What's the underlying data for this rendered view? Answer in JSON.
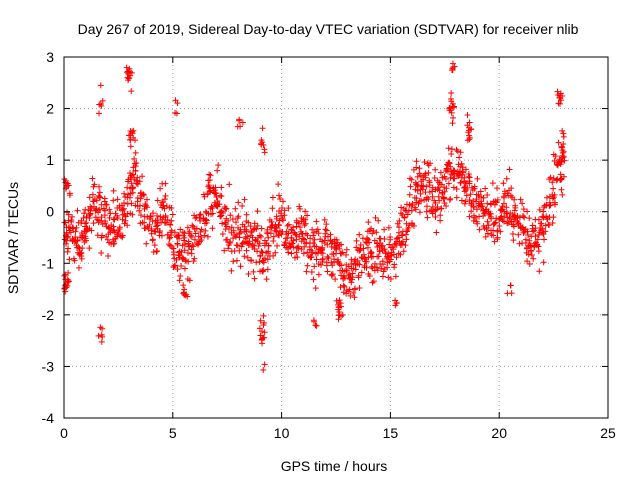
{
  "chart_data": {
    "type": "scatter",
    "title": "Day 267 of 2019, Sidereal Day-to-day VTEC variation (SDTVAR) for receiver nlib",
    "xlabel": "GPS time / hours",
    "ylabel": "SDTVAR / TECUs",
    "xlim": [
      0,
      25
    ],
    "ylim": [
      -4,
      3
    ],
    "xticks": [
      0,
      5,
      10,
      15,
      20,
      25
    ],
    "yticks": [
      -4,
      -3,
      -2,
      -1,
      0,
      1,
      2,
      3
    ],
    "xtick_labels": [
      "0",
      "5",
      "10",
      "15",
      "20",
      "25"
    ],
    "ytick_labels": [
      "-4",
      "-3",
      "-2",
      "-1",
      "0",
      "1",
      "2",
      "3"
    ],
    "grid": true,
    "marker": "+",
    "marker_color": "#ff0000",
    "trend": [
      {
        "x": 0.0,
        "y": -0.2
      },
      {
        "x": 0.3,
        "y": -0.4
      },
      {
        "x": 0.7,
        "y": -0.6
      },
      {
        "x": 1.0,
        "y": -0.3
      },
      {
        "x": 1.4,
        "y": 0.2
      },
      {
        "x": 1.8,
        "y": -0.2
      },
      {
        "x": 2.2,
        "y": -0.5
      },
      {
        "x": 2.6,
        "y": 0.0
      },
      {
        "x": 3.0,
        "y": 0.4
      },
      {
        "x": 3.3,
        "y": 0.8
      },
      {
        "x": 3.7,
        "y": 0.0
      },
      {
        "x": 4.2,
        "y": -0.4
      },
      {
        "x": 4.6,
        "y": 0.1
      },
      {
        "x": 5.0,
        "y": -0.6
      },
      {
        "x": 5.4,
        "y": -0.9
      },
      {
        "x": 5.8,
        "y": -0.8
      },
      {
        "x": 6.3,
        "y": -0.2
      },
      {
        "x": 6.7,
        "y": 0.4
      },
      {
        "x": 7.1,
        "y": 0.2
      },
      {
        "x": 7.5,
        "y": -0.3
      },
      {
        "x": 8.0,
        "y": -0.4
      },
      {
        "x": 8.4,
        "y": -0.6
      },
      {
        "x": 8.8,
        "y": -0.7
      },
      {
        "x": 9.2,
        "y": -0.9
      },
      {
        "x": 9.6,
        "y": -0.4
      },
      {
        "x": 10.0,
        "y": 0.0
      },
      {
        "x": 10.4,
        "y": -0.6
      },
      {
        "x": 10.8,
        "y": -0.4
      },
      {
        "x": 11.2,
        "y": -0.6
      },
      {
        "x": 11.6,
        "y": -0.8
      },
      {
        "x": 12.0,
        "y": -0.7
      },
      {
        "x": 12.4,
        "y": -0.9
      },
      {
        "x": 12.8,
        "y": -1.1
      },
      {
        "x": 13.2,
        "y": -1.3
      },
      {
        "x": 13.6,
        "y": -1.0
      },
      {
        "x": 14.0,
        "y": -0.8
      },
      {
        "x": 14.4,
        "y": -0.7
      },
      {
        "x": 14.8,
        "y": -0.9
      },
      {
        "x": 15.2,
        "y": -0.8
      },
      {
        "x": 15.6,
        "y": -0.4
      },
      {
        "x": 16.0,
        "y": 0.2
      },
      {
        "x": 16.4,
        "y": 0.5
      },
      {
        "x": 16.8,
        "y": 0.4
      },
      {
        "x": 17.2,
        "y": 0.2
      },
      {
        "x": 17.6,
        "y": 0.6
      },
      {
        "x": 18.0,
        "y": 0.8
      },
      {
        "x": 18.4,
        "y": 0.5
      },
      {
        "x": 18.8,
        "y": 0.3
      },
      {
        "x": 19.2,
        "y": 0.1
      },
      {
        "x": 19.6,
        "y": -0.2
      },
      {
        "x": 20.0,
        "y": 0.0
      },
      {
        "x": 20.4,
        "y": 0.2
      },
      {
        "x": 20.8,
        "y": -0.2
      },
      {
        "x": 21.2,
        "y": -0.4
      },
      {
        "x": 21.6,
        "y": -0.6
      },
      {
        "x": 22.0,
        "y": -0.3
      },
      {
        "x": 22.4,
        "y": 0.3
      },
      {
        "x": 22.8,
        "y": 0.9
      },
      {
        "x": 23.0,
        "y": 1.0
      }
    ],
    "clusters": [
      {
        "x": 0.1,
        "y": -1.4,
        "spread": 0.25,
        "count": 18
      },
      {
        "x": 0.1,
        "y": 0.5,
        "spread": 0.2,
        "count": 10
      },
      {
        "x": 1.7,
        "y": 2.2,
        "spread": 0.2,
        "count": 6
      },
      {
        "x": 1.7,
        "y": -2.3,
        "spread": 0.35,
        "count": 6
      },
      {
        "x": 3.0,
        "y": 2.6,
        "spread": 0.25,
        "count": 14
      },
      {
        "x": 3.1,
        "y": 1.5,
        "spread": 0.15,
        "count": 10
      },
      {
        "x": 5.1,
        "y": 2.0,
        "spread": 0.2,
        "count": 4
      },
      {
        "x": 5.6,
        "y": -1.6,
        "spread": 0.15,
        "count": 8
      },
      {
        "x": 8.1,
        "y": 1.7,
        "spread": 0.2,
        "count": 5
      },
      {
        "x": 9.1,
        "y": -2.4,
        "spread": 0.3,
        "count": 14
      },
      {
        "x": 9.1,
        "y": 1.2,
        "spread": 0.3,
        "count": 8
      },
      {
        "x": 9.1,
        "y": -3.0,
        "spread": 0.1,
        "count": 2
      },
      {
        "x": 11.5,
        "y": -2.1,
        "spread": 0.15,
        "count": 4
      },
      {
        "x": 12.7,
        "y": -1.9,
        "spread": 0.25,
        "count": 14
      },
      {
        "x": 15.2,
        "y": -1.8,
        "spread": 0.15,
        "count": 4
      },
      {
        "x": 17.8,
        "y": 2.0,
        "spread": 0.3,
        "count": 14
      },
      {
        "x": 17.9,
        "y": 2.8,
        "spread": 0.15,
        "count": 6
      },
      {
        "x": 18.6,
        "y": 1.6,
        "spread": 0.25,
        "count": 12
      },
      {
        "x": 20.5,
        "y": -1.5,
        "spread": 0.2,
        "count": 4
      },
      {
        "x": 22.8,
        "y": 2.2,
        "spread": 0.15,
        "count": 10
      }
    ],
    "seed": 267
  }
}
